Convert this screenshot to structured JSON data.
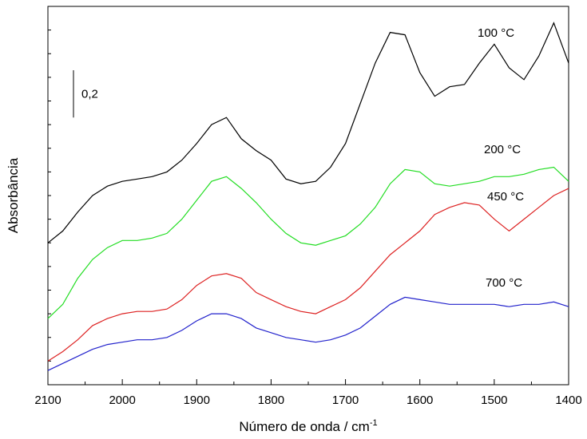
{
  "chart_data": {
    "type": "line",
    "xlabel": "Número de onda / cm",
    "xlabel_sup": "-1",
    "ylabel": "Absorbância",
    "xlim": [
      2100,
      1400
    ],
    "xticks": [
      2100,
      2000,
      1900,
      1800,
      1700,
      1600,
      1500,
      1400
    ],
    "xminorticks": [
      2050,
      1950,
      1850,
      1750,
      1650,
      1550,
      1450
    ],
    "ylim": [
      0,
      1.6
    ],
    "yticks": [
      0.1,
      0.2,
      0.3,
      0.4,
      0.5,
      0.6,
      0.7,
      0.8,
      0.9,
      1.0,
      1.1,
      1.2,
      1.3,
      1.4,
      1.5
    ],
    "ytick_labels": false,
    "scale_bar": {
      "value": 0.2,
      "label": "0,2"
    },
    "x": [
      2100,
      2080,
      2060,
      2040,
      2020,
      2000,
      1980,
      1960,
      1940,
      1920,
      1900,
      1880,
      1860,
      1840,
      1820,
      1800,
      1780,
      1760,
      1740,
      1720,
      1700,
      1680,
      1660,
      1640,
      1620,
      1600,
      1580,
      1560,
      1540,
      1520,
      1500,
      1480,
      1460,
      1440,
      1420,
      1400
    ],
    "series": [
      {
        "name": "100 °C",
        "color": "#000000",
        "values": [
          0.6,
          0.65,
          0.73,
          0.8,
          0.84,
          0.86,
          0.87,
          0.88,
          0.9,
          0.95,
          1.02,
          1.1,
          1.13,
          1.04,
          0.99,
          0.95,
          0.87,
          0.85,
          0.86,
          0.92,
          1.02,
          1.19,
          1.36,
          1.49,
          1.48,
          1.32,
          1.22,
          1.26,
          1.27,
          1.36,
          1.44,
          1.34,
          1.29,
          1.39,
          1.53,
          1.36
        ]
      },
      {
        "name": "200 °C",
        "color": "#22dd22",
        "values": [
          0.28,
          0.34,
          0.45,
          0.53,
          0.58,
          0.61,
          0.61,
          0.62,
          0.64,
          0.7,
          0.78,
          0.86,
          0.88,
          0.83,
          0.77,
          0.7,
          0.64,
          0.6,
          0.59,
          0.61,
          0.63,
          0.68,
          0.75,
          0.85,
          0.91,
          0.9,
          0.85,
          0.84,
          0.85,
          0.86,
          0.88,
          0.88,
          0.89,
          0.91,
          0.92,
          0.86
        ]
      },
      {
        "name": "450 °C",
        "color": "#dd2222",
        "values": [
          0.1,
          0.14,
          0.19,
          0.25,
          0.28,
          0.3,
          0.31,
          0.31,
          0.32,
          0.36,
          0.42,
          0.46,
          0.47,
          0.45,
          0.39,
          0.36,
          0.33,
          0.31,
          0.3,
          0.33,
          0.36,
          0.41,
          0.48,
          0.55,
          0.6,
          0.65,
          0.72,
          0.75,
          0.77,
          0.76,
          0.7,
          0.65,
          0.7,
          0.75,
          0.8,
          0.83
        ]
      },
      {
        "name": "700 °C",
        "color": "#2222cc",
        "values": [
          0.06,
          0.09,
          0.12,
          0.15,
          0.17,
          0.18,
          0.19,
          0.19,
          0.2,
          0.23,
          0.27,
          0.3,
          0.3,
          0.28,
          0.24,
          0.22,
          0.2,
          0.19,
          0.18,
          0.19,
          0.21,
          0.24,
          0.29,
          0.34,
          0.37,
          0.36,
          0.35,
          0.34,
          0.34,
          0.34,
          0.34,
          0.33,
          0.34,
          0.34,
          0.35,
          0.33
        ]
      }
    ]
  }
}
